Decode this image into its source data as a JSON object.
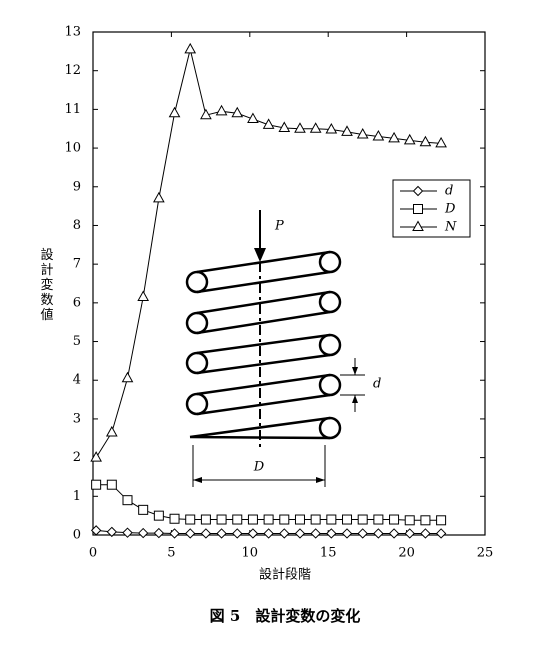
{
  "chart_data": {
    "type": "line",
    "xlabel": "設計段階",
    "ylabel": "設計変数値",
    "caption": "図 5　設計変数の変化",
    "diagram_labels": {
      "load": "P",
      "wire": "d",
      "coil": "D"
    },
    "x": [
      0.2,
      1.2,
      2.2,
      3.2,
      4.2,
      5.2,
      6.2,
      7.2,
      8.2,
      9.2,
      10.2,
      11.2,
      12.2,
      13.2,
      14.2,
      15.2,
      16.2,
      17.2,
      18.2,
      19.2,
      20.2,
      21.2,
      22.2
    ],
    "series": [
      {
        "name": "d",
        "marker": "diamond",
        "color": "#000000",
        "values": [
          0.12,
          0.08,
          0.06,
          0.05,
          0.05,
          0.04,
          0.04,
          0.04,
          0.04,
          0.04,
          0.04,
          0.04,
          0.04,
          0.04,
          0.04,
          0.04,
          0.04,
          0.04,
          0.04,
          0.04,
          0.04,
          0.04,
          0.04
        ]
      },
      {
        "name": "D",
        "marker": "square",
        "color": "#000000",
        "values": [
          1.3,
          1.3,
          0.9,
          0.65,
          0.5,
          0.42,
          0.4,
          0.4,
          0.4,
          0.4,
          0.4,
          0.4,
          0.4,
          0.4,
          0.4,
          0.4,
          0.4,
          0.4,
          0.4,
          0.4,
          0.38,
          0.38,
          0.38
        ]
      },
      {
        "name": "N",
        "marker": "triangle",
        "color": "#000000",
        "values": [
          2.0,
          2.65,
          4.05,
          6.15,
          8.7,
          10.9,
          12.55,
          10.85,
          10.95,
          10.9,
          10.75,
          10.6,
          10.52,
          10.5,
          10.5,
          10.48,
          10.42,
          10.35,
          10.3,
          10.25,
          10.2,
          10.15,
          10.12
        ]
      }
    ],
    "xlim": [
      0,
      25
    ],
    "xticks": [
      0,
      5,
      10,
      15,
      20,
      25
    ],
    "ylim": [
      0,
      13
    ],
    "yticks": [
      0,
      1,
      2,
      3,
      4,
      5,
      6,
      7,
      8,
      9,
      10,
      11,
      12,
      13
    ],
    "legend": "upper right"
  }
}
